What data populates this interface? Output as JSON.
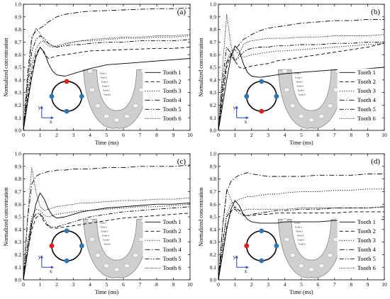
{
  "figure": {
    "xlabel": "Time (ms)",
    "ylabel": "Normalized concentration",
    "xlim": [
      0,
      10
    ],
    "ylim": [
      0,
      1.0
    ],
    "xticks": [
      0,
      1,
      2,
      3,
      4,
      5,
      6,
      7,
      8,
      9,
      10
    ],
    "xtick_labels": [
      "0",
      "1",
      "2",
      "3",
      "4",
      "5",
      "6",
      "7",
      "8",
      "9",
      "10"
    ],
    "yticks": [
      0,
      0.1,
      0.2,
      0.3,
      0.4,
      0.5,
      0.6,
      0.7,
      0.8,
      0.9,
      1.0
    ],
    "ytick_labels": [
      "0.0",
      "0.1",
      "0.2",
      "0.3",
      "0.4",
      "0.5",
      "0.6",
      "0.7",
      "0.8",
      "0.9",
      "1.0"
    ],
    "inset_axes": {
      "y": "y",
      "x": "x"
    },
    "inset_colors": {
      "ring": "#000000",
      "normal_dot": "#2e75b6",
      "highlight_dot": "#e02020",
      "axis_arrow": "#1f3fbf"
    },
    "jaw_labels": [
      "Tooth 1",
      "Tooth 2",
      "Tooth 3",
      "Tooth 4",
      "Tooth 5",
      "Tooth 6"
    ]
  },
  "chart_data": [
    {
      "type": "line",
      "panel": "(a)",
      "highlight_electrode": "top",
      "x": [
        0,
        0.25,
        0.5,
        0.75,
        1,
        1.25,
        1.5,
        1.75,
        2,
        2.5,
        3,
        3.5,
        4,
        5,
        6,
        7,
        8,
        9,
        10
      ],
      "series": [
        {
          "name": "Tooth 1",
          "style": "solid",
          "values": [
            0,
            0.22,
            0.42,
            0.58,
            0.66,
            0.62,
            0.53,
            0.47,
            0.44,
            0.43,
            0.45,
            0.47,
            0.49,
            0.52,
            0.53,
            0.54,
            0.55,
            0.56,
            0.57
          ]
        },
        {
          "name": "Tooth 2",
          "style": "dashed",
          "values": [
            0,
            0.25,
            0.46,
            0.6,
            0.66,
            0.61,
            0.57,
            0.58,
            0.59,
            0.6,
            0.61,
            0.62,
            0.63,
            0.635,
            0.64,
            0.645,
            0.65,
            0.65,
            0.66
          ]
        },
        {
          "name": "Tooth 3",
          "style": "dotted",
          "values": [
            0,
            0.28,
            0.52,
            0.64,
            0.7,
            0.71,
            0.69,
            0.67,
            0.66,
            0.68,
            0.7,
            0.71,
            0.71,
            0.72,
            0.73,
            0.73,
            0.74,
            0.74,
            0.75
          ]
        },
        {
          "name": "Tooth 4",
          "style": "dashdot",
          "values": [
            0,
            0.45,
            0.74,
            0.79,
            0.81,
            0.83,
            0.86,
            0.88,
            0.9,
            0.92,
            0.93,
            0.94,
            0.945,
            0.95,
            0.955,
            0.96,
            0.965,
            0.965,
            0.97
          ]
        },
        {
          "name": "Tooth 5",
          "style": "dashdotdot",
          "values": [
            0,
            0.35,
            0.62,
            0.72,
            0.75,
            0.73,
            0.69,
            0.67,
            0.66,
            0.67,
            0.68,
            0.68,
            0.69,
            0.7,
            0.7,
            0.71,
            0.71,
            0.71,
            0.72
          ]
        },
        {
          "name": "Tooth 6",
          "style": "shortdot",
          "values": [
            0,
            0.4,
            0.72,
            0.81,
            0.77,
            0.7,
            0.67,
            0.66,
            0.67,
            0.69,
            0.7,
            0.71,
            0.72,
            0.73,
            0.74,
            0.74,
            0.75,
            0.75,
            0.76
          ]
        }
      ]
    },
    {
      "type": "line",
      "panel": "(b)",
      "highlight_electrode": "bottom",
      "x": [
        0,
        0.25,
        0.5,
        0.75,
        1,
        1.25,
        1.5,
        1.75,
        2,
        2.5,
        3,
        3.5,
        4,
        5,
        6,
        7,
        8,
        9,
        10
      ],
      "series": [
        {
          "name": "Tooth 1",
          "style": "solid",
          "values": [
            0,
            0.2,
            0.4,
            0.58,
            0.67,
            0.63,
            0.53,
            0.46,
            0.43,
            0.42,
            0.43,
            0.44,
            0.45,
            0.46,
            0.47,
            0.48,
            0.48,
            0.49,
            0.5
          ]
        },
        {
          "name": "Tooth 2",
          "style": "dashed",
          "values": [
            0,
            0.25,
            0.5,
            0.6,
            0.55,
            0.5,
            0.49,
            0.5,
            0.51,
            0.52,
            0.53,
            0.55,
            0.56,
            0.58,
            0.6,
            0.62,
            0.64,
            0.66,
            0.69
          ]
        },
        {
          "name": "Tooth 3",
          "style": "dotted",
          "values": [
            0,
            0.3,
            0.55,
            0.63,
            0.64,
            0.6,
            0.58,
            0.59,
            0.6,
            0.61,
            0.62,
            0.63,
            0.63,
            0.64,
            0.65,
            0.66,
            0.67,
            0.68,
            0.69
          ]
        },
        {
          "name": "Tooth 4",
          "style": "dashdot",
          "values": [
            0,
            0.35,
            0.54,
            0.6,
            0.64,
            0.68,
            0.72,
            0.74,
            0.76,
            0.79,
            0.81,
            0.82,
            0.83,
            0.85,
            0.86,
            0.87,
            0.87,
            0.88,
            0.88
          ]
        },
        {
          "name": "Tooth 5",
          "style": "dashdotdot",
          "values": [
            0,
            0.4,
            0.66,
            0.61,
            0.55,
            0.58,
            0.62,
            0.64,
            0.65,
            0.66,
            0.66,
            0.67,
            0.67,
            0.68,
            0.68,
            0.69,
            0.69,
            0.7,
            0.7
          ]
        },
        {
          "name": "Tooth 6",
          "style": "shortdot",
          "values": [
            0,
            0.5,
            0.92,
            0.68,
            0.55,
            0.6,
            0.68,
            0.7,
            0.71,
            0.72,
            0.73,
            0.73,
            0.73,
            0.74,
            0.74,
            0.75,
            0.75,
            0.75,
            0.76
          ]
        }
      ]
    },
    {
      "type": "line",
      "panel": "(c)",
      "highlight_electrode": "left",
      "x": [
        0,
        0.25,
        0.5,
        0.75,
        1,
        1.25,
        1.5,
        1.75,
        2,
        2.5,
        3,
        3.5,
        4,
        5,
        6,
        7,
        8,
        9,
        10
      ],
      "series": [
        {
          "name": "Tooth 1",
          "style": "solid",
          "values": [
            0,
            0.22,
            0.44,
            0.6,
            0.69,
            0.64,
            0.56,
            0.51,
            0.49,
            0.5,
            0.52,
            0.54,
            0.55,
            0.57,
            0.58,
            0.59,
            0.6,
            0.6,
            0.61
          ]
        },
        {
          "name": "Tooth 2",
          "style": "dashed",
          "values": [
            0,
            0.22,
            0.4,
            0.49,
            0.52,
            0.46,
            0.42,
            0.41,
            0.41,
            0.42,
            0.43,
            0.44,
            0.45,
            0.47,
            0.49,
            0.5,
            0.51,
            0.52,
            0.53
          ]
        },
        {
          "name": "Tooth 3",
          "style": "dotted",
          "values": [
            0,
            0.28,
            0.5,
            0.56,
            0.55,
            0.51,
            0.5,
            0.51,
            0.52,
            0.53,
            0.54,
            0.55,
            0.55,
            0.56,
            0.57,
            0.58,
            0.58,
            0.59,
            0.6
          ]
        },
        {
          "name": "Tooth 4",
          "style": "dashdot",
          "values": [
            0,
            0.48,
            0.76,
            0.82,
            0.84,
            0.85,
            0.86,
            0.86,
            0.87,
            0.87,
            0.88,
            0.88,
            0.88,
            0.89,
            0.89,
            0.9,
            0.9,
            0.9,
            0.91
          ]
        },
        {
          "name": "Tooth 5",
          "style": "dashdotdot",
          "values": [
            0,
            0.28,
            0.47,
            0.52,
            0.53,
            0.48,
            0.43,
            0.42,
            0.42,
            0.44,
            0.46,
            0.48,
            0.5,
            0.52,
            0.54,
            0.55,
            0.56,
            0.57,
            0.58
          ]
        },
        {
          "name": "Tooth 6",
          "style": "shortdot",
          "values": [
            0,
            0.5,
            0.89,
            0.7,
            0.58,
            0.55,
            0.56,
            0.57,
            0.58,
            0.59,
            0.6,
            0.61,
            0.61,
            0.62,
            0.63,
            0.63,
            0.64,
            0.64,
            0.65
          ]
        }
      ]
    },
    {
      "type": "line",
      "panel": "(d)",
      "highlight_electrode": "left",
      "x": [
        0,
        0.25,
        0.5,
        0.75,
        1,
        1.25,
        1.5,
        1.75,
        2,
        2.5,
        3,
        3.5,
        4,
        5,
        6,
        7,
        8,
        9,
        10
      ],
      "series": [
        {
          "name": "Tooth 1",
          "style": "solid",
          "values": [
            0,
            0.2,
            0.4,
            0.56,
            0.63,
            0.59,
            0.52,
            0.48,
            0.46,
            0.45,
            0.45,
            0.45,
            0.46,
            0.46,
            0.46,
            0.47,
            0.47,
            0.47,
            0.48
          ]
        },
        {
          "name": "Tooth 2",
          "style": "dashed",
          "values": [
            0,
            0.22,
            0.42,
            0.54,
            0.58,
            0.55,
            0.52,
            0.51,
            0.51,
            0.52,
            0.52,
            0.53,
            0.53,
            0.53,
            0.53,
            0.53,
            0.54,
            0.54,
            0.54
          ]
        },
        {
          "name": "Tooth 3",
          "style": "dotted",
          "values": [
            0,
            0.28,
            0.52,
            0.6,
            0.62,
            0.64,
            0.65,
            0.66,
            0.66,
            0.67,
            0.68,
            0.68,
            0.69,
            0.7,
            0.7,
            0.71,
            0.71,
            0.72,
            0.72
          ]
        },
        {
          "name": "Tooth 4",
          "style": "dashdot",
          "values": [
            0,
            0.42,
            0.7,
            0.78,
            0.81,
            0.83,
            0.84,
            0.85,
            0.84,
            0.83,
            0.82,
            0.82,
            0.82,
            0.82,
            0.83,
            0.83,
            0.83,
            0.84,
            0.84
          ]
        },
        {
          "name": "Tooth 5",
          "style": "dashdotdot",
          "values": [
            0,
            0.3,
            0.5,
            0.55,
            0.56,
            0.53,
            0.51,
            0.51,
            0.52,
            0.53,
            0.54,
            0.55,
            0.55,
            0.56,
            0.56,
            0.57,
            0.57,
            0.57,
            0.58
          ]
        },
        {
          "name": "Tooth 6",
          "style": "shortdot",
          "values": [
            0,
            0.42,
            0.72,
            0.64,
            0.57,
            0.55,
            0.55,
            0.56,
            0.56,
            0.56,
            0.56,
            0.56,
            0.56,
            0.57,
            0.57,
            0.57,
            0.57,
            0.57,
            0.58
          ]
        }
      ]
    }
  ]
}
